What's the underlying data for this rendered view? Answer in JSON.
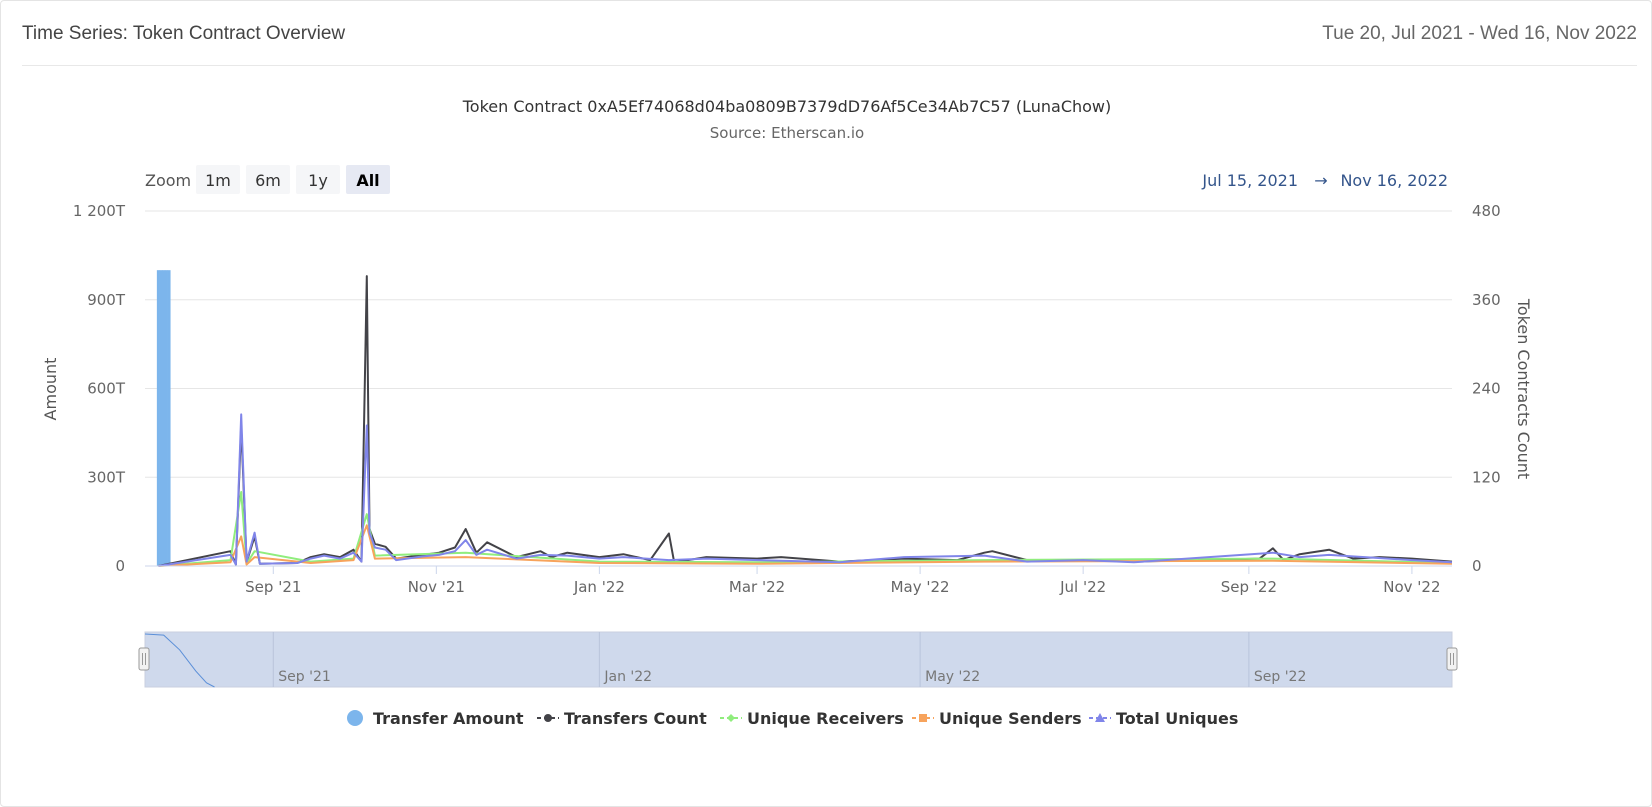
{
  "header": {
    "title": "Time Series: Token Contract Overview",
    "range": "Tue 20, Jul 2021 - Wed 16, Nov 2022"
  },
  "chart_data": {
    "type": "line",
    "title": "Token Contract 0xA5Ef74068d04ba0809B7379dD76Af5Ce34Ab7C57 (LunaChow)",
    "subtitle": "Source: Etherscan.io",
    "zoom": {
      "label": "Zoom",
      "buttons": [
        "1m",
        "6m",
        "1y",
        "All"
      ],
      "active": "All"
    },
    "range_selector": {
      "from": "Jul 15, 2021",
      "arrow": "→",
      "to": "Nov 16, 2022"
    },
    "y_left": {
      "label": "Amount",
      "ticks": [
        "0",
        "300T",
        "600T",
        "900T",
        "1 200T"
      ],
      "ylim": [
        0,
        1200
      ]
    },
    "y_right": {
      "label": "Token Contracts Count",
      "ticks": [
        "0",
        "120",
        "240",
        "360",
        "480"
      ],
      "ylim": [
        0,
        480
      ]
    },
    "x_ticks": [
      "Sep '21",
      "Nov '21",
      "Jan '22",
      "Mar '22",
      "May '22",
      "Jul '22",
      "Sep '22",
      "Nov '22"
    ],
    "navigator_ticks": [
      "Sep '21",
      "Jan '22",
      "May '22",
      "Sep '22"
    ],
    "legend_position": "bottom",
    "grid": true,
    "series": [
      {
        "name": "Transfer Amount",
        "axis": "left",
        "kind": "column",
        "color": "#7cb5ec",
        "points": [
          [
            "2021-07-20",
            1000
          ],
          [
            "2021-07-21",
            1000
          ],
          [
            "2021-07-22",
            1000
          ],
          [
            "2021-07-23",
            1000
          ],
          [
            "2021-07-24",
            1000
          ]
        ]
      },
      {
        "name": "Transfers Count",
        "axis": "right",
        "color": "#434348",
        "points": [
          [
            "2021-07-20",
            0
          ],
          [
            "2021-08-16",
            20
          ],
          [
            "2021-08-18",
            2
          ],
          [
            "2021-08-20",
            190
          ],
          [
            "2021-08-22",
            5
          ],
          [
            "2021-08-25",
            40
          ],
          [
            "2021-08-27",
            3
          ],
          [
            "2021-09-10",
            4
          ],
          [
            "2021-09-15",
            12
          ],
          [
            "2021-09-20",
            16
          ],
          [
            "2021-09-26",
            12
          ],
          [
            "2021-10-01",
            22
          ],
          [
            "2021-10-04",
            6
          ],
          [
            "2021-10-06",
            392
          ],
          [
            "2021-10-07",
            50
          ],
          [
            "2021-10-09",
            30
          ],
          [
            "2021-10-13",
            26
          ],
          [
            "2021-10-17",
            10
          ],
          [
            "2021-10-27",
            15
          ],
          [
            "2021-11-02",
            18
          ],
          [
            "2021-11-08",
            25
          ],
          [
            "2021-11-12",
            50
          ],
          [
            "2021-11-16",
            18
          ],
          [
            "2021-11-20",
            32
          ],
          [
            "2021-12-01",
            12
          ],
          [
            "2021-12-10",
            20
          ],
          [
            "2021-12-14",
            12
          ],
          [
            "2021-12-20",
            18
          ],
          [
            "2022-01-01",
            12
          ],
          [
            "2022-01-10",
            16
          ],
          [
            "2022-01-20",
            8
          ],
          [
            "2022-01-27",
            44
          ],
          [
            "2022-01-29",
            5
          ],
          [
            "2022-02-10",
            12
          ],
          [
            "2022-03-01",
            10
          ],
          [
            "2022-03-10",
            12
          ],
          [
            "2022-04-01",
            6
          ],
          [
            "2022-04-25",
            10
          ],
          [
            "2022-05-15",
            8
          ],
          [
            "2022-05-25",
            18
          ],
          [
            "2022-05-28",
            20
          ],
          [
            "2022-06-10",
            8
          ],
          [
            "2022-07-01",
            8
          ],
          [
            "2022-07-20",
            6
          ],
          [
            "2022-08-15",
            8
          ],
          [
            "2022-09-05",
            10
          ],
          [
            "2022-09-10",
            24
          ],
          [
            "2022-09-14",
            8
          ],
          [
            "2022-09-20",
            16
          ],
          [
            "2022-10-01",
            22
          ],
          [
            "2022-10-10",
            10
          ],
          [
            "2022-10-20",
            12
          ],
          [
            "2022-11-01",
            10
          ],
          [
            "2022-11-16",
            6
          ]
        ]
      },
      {
        "name": "Unique Receivers",
        "axis": "right",
        "color": "#90ed7d",
        "points": [
          [
            "2021-07-20",
            0
          ],
          [
            "2021-08-16",
            8
          ],
          [
            "2021-08-20",
            100
          ],
          [
            "2021-08-22",
            3
          ],
          [
            "2021-08-25",
            20
          ],
          [
            "2021-09-15",
            6
          ],
          [
            "2021-10-01",
            10
          ],
          [
            "2021-10-06",
            70
          ],
          [
            "2021-10-09",
            14
          ],
          [
            "2021-11-12",
            18
          ],
          [
            "2022-01-01",
            6
          ],
          [
            "2022-03-01",
            5
          ],
          [
            "2022-05-25",
            8
          ],
          [
            "2022-09-10",
            10
          ],
          [
            "2022-11-16",
            4
          ]
        ]
      },
      {
        "name": "Unique Senders",
        "axis": "right",
        "color": "#f7a35c",
        "points": [
          [
            "2021-07-20",
            0
          ],
          [
            "2021-08-16",
            5
          ],
          [
            "2021-08-20",
            40
          ],
          [
            "2021-08-22",
            2
          ],
          [
            "2021-08-25",
            12
          ],
          [
            "2021-09-15",
            4
          ],
          [
            "2021-10-01",
            8
          ],
          [
            "2021-10-06",
            55
          ],
          [
            "2021-10-09",
            10
          ],
          [
            "2021-11-12",
            12
          ],
          [
            "2022-01-01",
            4
          ],
          [
            "2022-03-01",
            3
          ],
          [
            "2022-05-25",
            6
          ],
          [
            "2022-09-10",
            7
          ],
          [
            "2022-11-16",
            3
          ]
        ]
      },
      {
        "name": "Total Uniques",
        "axis": "right",
        "color": "#8085e9",
        "points": [
          [
            "2021-07-20",
            0
          ],
          [
            "2021-08-16",
            15
          ],
          [
            "2021-08-18",
            2
          ],
          [
            "2021-08-20",
            205
          ],
          [
            "2021-08-22",
            6
          ],
          [
            "2021-08-25",
            45
          ],
          [
            "2021-08-27",
            3
          ],
          [
            "2021-09-10",
            4
          ],
          [
            "2021-09-15",
            10
          ],
          [
            "2021-09-20",
            14
          ],
          [
            "2021-09-26",
            10
          ],
          [
            "2021-10-01",
            18
          ],
          [
            "2021-10-04",
            6
          ],
          [
            "2021-10-06",
            190
          ],
          [
            "2021-10-07",
            45
          ],
          [
            "2021-10-09",
            25
          ],
          [
            "2021-10-13",
            22
          ],
          [
            "2021-10-17",
            8
          ],
          [
            "2021-10-27",
            13
          ],
          [
            "2021-11-02",
            15
          ],
          [
            "2021-11-08",
            20
          ],
          [
            "2021-11-12",
            35
          ],
          [
            "2021-11-16",
            15
          ],
          [
            "2021-11-20",
            22
          ],
          [
            "2021-12-01",
            10
          ],
          [
            "2021-12-10",
            15
          ],
          [
            "2021-12-20",
            14
          ],
          [
            "2022-01-01",
            10
          ],
          [
            "2022-01-10",
            12
          ],
          [
            "2022-01-27",
            8
          ],
          [
            "2022-02-10",
            10
          ],
          [
            "2022-03-01",
            8
          ],
          [
            "2022-04-01",
            5
          ],
          [
            "2022-04-25",
            12
          ],
          [
            "2022-05-25",
            14
          ],
          [
            "2022-06-10",
            6
          ],
          [
            "2022-07-01",
            8
          ],
          [
            "2022-07-20",
            5
          ],
          [
            "2022-09-10",
            18
          ],
          [
            "2022-09-20",
            12
          ],
          [
            "2022-10-01",
            15
          ],
          [
            "2022-11-01",
            8
          ],
          [
            "2022-11-16",
            5
          ]
        ]
      }
    ],
    "navigator_series": [
      [
        "2021-07-15",
        1000
      ],
      [
        "2021-07-22",
        980
      ],
      [
        "2021-07-28",
        700
      ],
      [
        "2021-08-03",
        300
      ],
      [
        "2021-08-07",
        80
      ],
      [
        "2021-08-10",
        0
      ]
    ]
  }
}
